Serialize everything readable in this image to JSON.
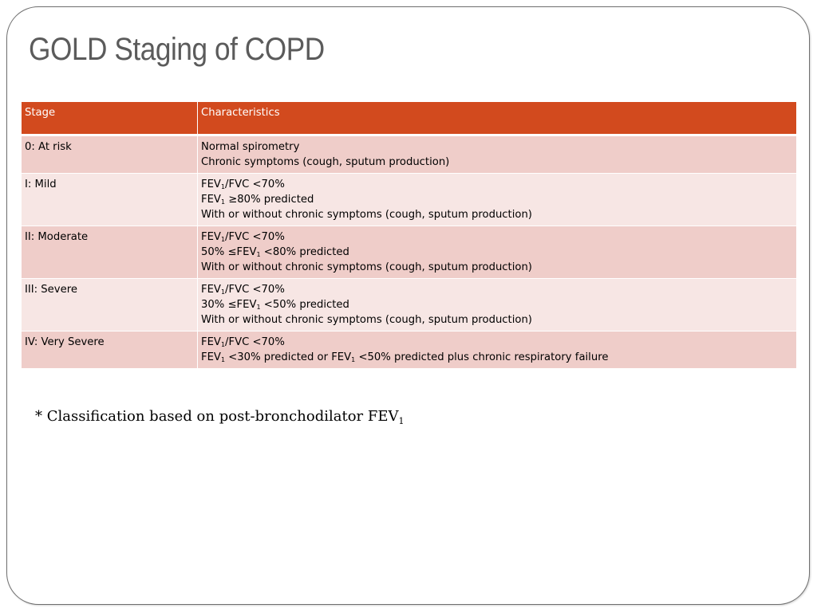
{
  "slide": {
    "title": "GOLD Staging of COPD",
    "footnote": {
      "text": "* Classification based on post-bronchodilator FEV",
      "subscript": "1"
    }
  },
  "table": {
    "headers": [
      "Stage",
      "Characteristics"
    ],
    "colors": {
      "header_bg": "#d24a1e",
      "row_dark": "#efcdc9",
      "row_light": "#f7e6e4"
    },
    "rows": [
      {
        "stage": "0: At risk",
        "lines": [
          [
            {
              "t": "Normal spirometry"
            }
          ],
          [
            {
              "t": "Chronic symptoms (cough, sputum production)"
            }
          ]
        ]
      },
      {
        "stage": "I: Mild",
        "lines": [
          [
            {
              "t": "FEV"
            },
            {
              "sub": "1"
            },
            {
              "t": "/FVC <70%"
            }
          ],
          [
            {
              "t": "FEV"
            },
            {
              "sub": "1"
            },
            {
              "t": " ≥80% predicted"
            }
          ],
          [
            {
              "t": "With or without chronic symptoms (cough, sputum production)"
            }
          ]
        ]
      },
      {
        "stage": "II: Moderate",
        "lines": [
          [
            {
              "t": "FEV"
            },
            {
              "sub": "1"
            },
            {
              "t": "/FVC <70%"
            }
          ],
          [
            {
              "t": "50% ≤FEV"
            },
            {
              "sub": "1"
            },
            {
              "t": " <80% predicted"
            }
          ],
          [
            {
              "t": "With or without chronic symptoms (cough, sputum production)"
            }
          ]
        ]
      },
      {
        "stage": "III: Severe",
        "lines": [
          [
            {
              "t": "FEV"
            },
            {
              "sub": "1"
            },
            {
              "t": "/FVC <70%"
            }
          ],
          [
            {
              "t": "30% ≤FEV"
            },
            {
              "sub": "1"
            },
            {
              "t": " <50% predicted"
            }
          ],
          [
            {
              "t": "With or without chronic symptoms (cough, sputum production)"
            }
          ]
        ]
      },
      {
        "stage": "IV: Very Severe",
        "lines": [
          [
            {
              "t": "FEV"
            },
            {
              "sub": "1"
            },
            {
              "t": "/FVC <70%"
            }
          ],
          [
            {
              "t": "FEV"
            },
            {
              "sub": "1"
            },
            {
              "t": " <30% predicted or FEV"
            },
            {
              "sub": "1"
            },
            {
              "t": " <50% predicted plus chronic respiratory failure"
            }
          ]
        ]
      }
    ]
  }
}
